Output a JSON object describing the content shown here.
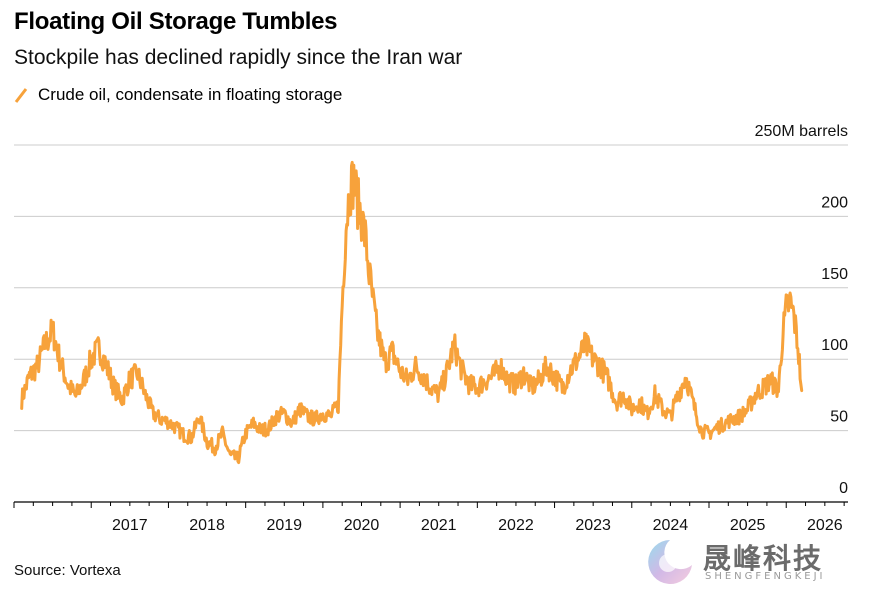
{
  "header": {
    "title": "Floating Oil Storage Tumbles",
    "subtitle": "Stockpile has declined rapidly since the Iran war",
    "legend_label": "Crude oil, condensate in floating storage"
  },
  "footer": {
    "source": "Source: Vortexa"
  },
  "watermark": {
    "cn": "晟峰科技",
    "en": "SHENGFENGKEJI"
  },
  "colors": {
    "series": "#f7a23b",
    "grid": "#cccccc",
    "axis": "#000000"
  },
  "chart_data": {
    "type": "line",
    "title": "Floating Oil Storage Tumbles",
    "subtitle": "Stockpile has declined rapidly since the Iran war",
    "xlabel": "",
    "ylabel": "M barrels",
    "ylim": [
      0,
      250
    ],
    "y_ticks": [
      0,
      50,
      100,
      150,
      200,
      250
    ],
    "y_tick_labels": [
      "0",
      "50",
      "100",
      "150",
      "200",
      "250M barrels"
    ],
    "xlim": [
      2016.0,
      2026.8
    ],
    "x_ticks": [
      2017,
      2018,
      2019,
      2020,
      2021,
      2022,
      2023,
      2024,
      2025,
      2026
    ],
    "x_tick_labels": [
      "2017",
      "2018",
      "2019",
      "2020",
      "2021",
      "2022",
      "2023",
      "2024",
      "2025",
      "2026"
    ],
    "grid": true,
    "series": [
      {
        "name": "Crude oil, condensate in floating storage",
        "x": [
          2016.1,
          2016.2,
          2016.3,
          2016.4,
          2016.5,
          2016.6,
          2016.7,
          2016.8,
          2016.9,
          2017.0,
          2017.1,
          2017.2,
          2017.3,
          2017.4,
          2017.5,
          2017.6,
          2017.7,
          2017.8,
          2017.9,
          2018.0,
          2018.1,
          2018.2,
          2018.3,
          2018.4,
          2018.5,
          2018.6,
          2018.7,
          2018.8,
          2018.9,
          2019.0,
          2019.1,
          2019.2,
          2019.3,
          2019.4,
          2019.5,
          2019.6,
          2019.7,
          2019.8,
          2019.9,
          2020.0,
          2020.1,
          2020.2,
          2020.25,
          2020.3,
          2020.35,
          2020.4,
          2020.45,
          2020.5,
          2020.55,
          2020.6,
          2020.7,
          2020.8,
          2020.9,
          2021.0,
          2021.1,
          2021.2,
          2021.3,
          2021.4,
          2021.5,
          2021.6,
          2021.7,
          2021.8,
          2021.9,
          2022.0,
          2022.1,
          2022.2,
          2022.3,
          2022.4,
          2022.5,
          2022.6,
          2022.7,
          2022.8,
          2022.9,
          2023.0,
          2023.1,
          2023.2,
          2023.3,
          2023.4,
          2023.5,
          2023.6,
          2023.7,
          2023.8,
          2023.9,
          2024.0,
          2024.1,
          2024.2,
          2024.3,
          2024.4,
          2024.5,
          2024.6,
          2024.7,
          2024.8,
          2024.9,
          2025.0,
          2025.1,
          2025.2,
          2025.3,
          2025.4,
          2025.5,
          2025.6,
          2025.7,
          2025.8,
          2025.9,
          2025.95,
          2026.0,
          2026.05,
          2026.1,
          2026.15,
          2026.2
        ],
        "values": [
          72,
          88,
          95,
          110,
          120,
          98,
          82,
          74,
          85,
          100,
          108,
          95,
          80,
          72,
          86,
          90,
          75,
          62,
          58,
          56,
          52,
          47,
          45,
          60,
          42,
          38,
          48,
          32,
          30,
          48,
          55,
          50,
          52,
          60,
          62,
          55,
          65,
          60,
          58,
          62,
          60,
          68,
          140,
          195,
          220,
          225,
          210,
          200,
          185,
          160,
          120,
          98,
          105,
          92,
          85,
          95,
          88,
          80,
          75,
          90,
          110,
          92,
          82,
          80,
          85,
          88,
          95,
          85,
          82,
          90,
          80,
          85,
          95,
          88,
          80,
          92,
          100,
          110,
          100,
          95,
          85,
          70,
          75,
          65,
          70,
          62,
          75,
          65,
          60,
          75,
          88,
          68,
          50,
          48,
          52,
          55,
          58,
          60,
          65,
          75,
          80,
          85,
          78,
          115,
          135,
          140,
          130,
          110,
          78
        ]
      }
    ]
  }
}
